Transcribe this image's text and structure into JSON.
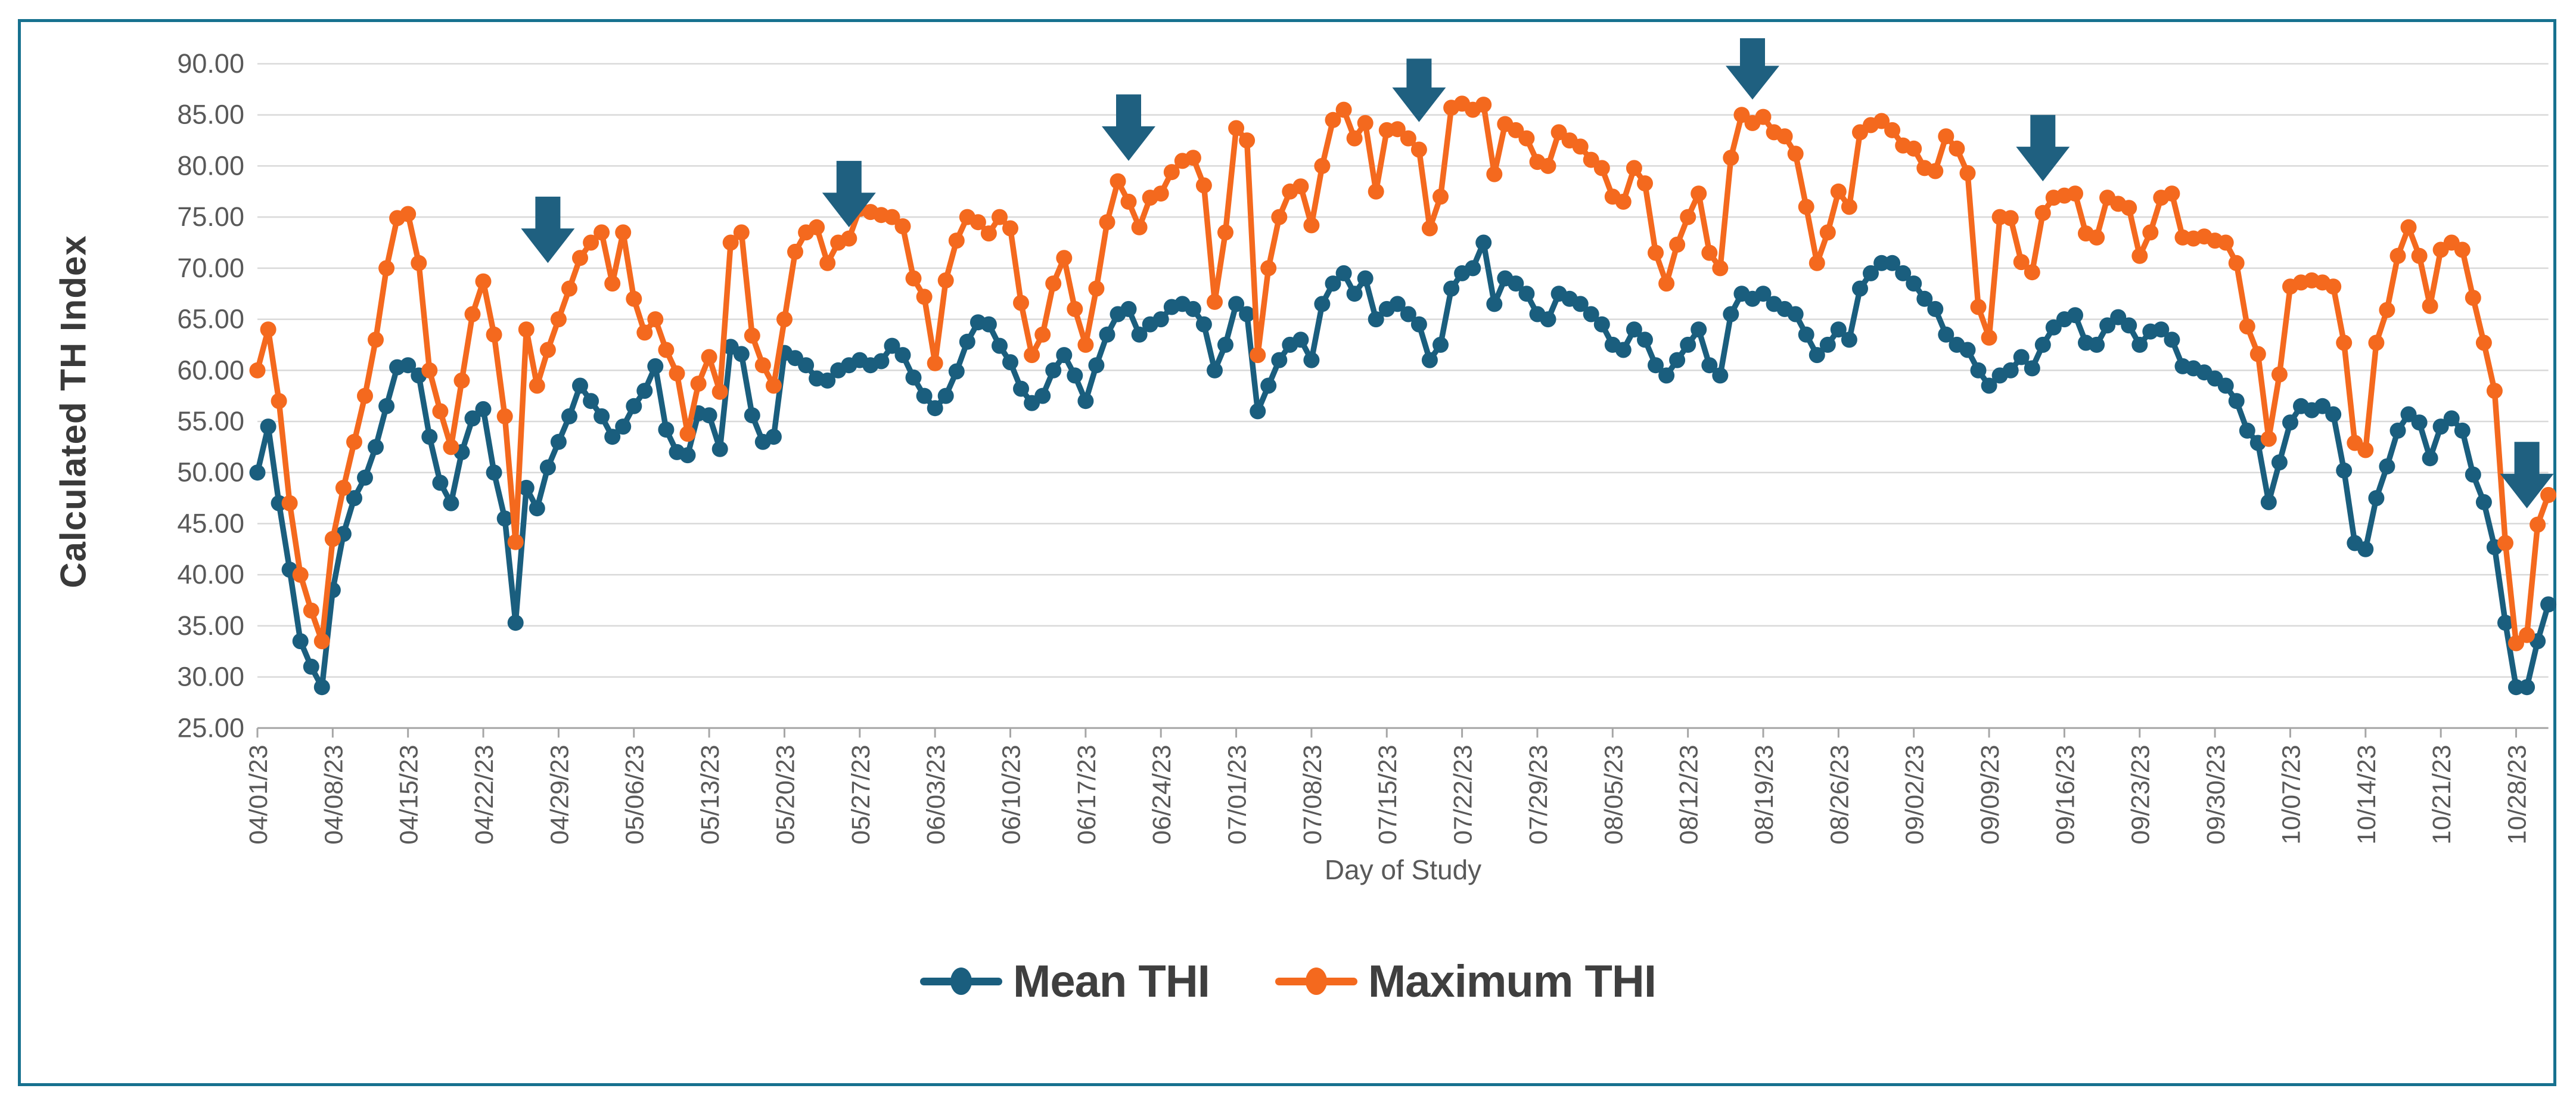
{
  "frame_color": "#17718F",
  "colors": {
    "mean_series": "#1A5E7E",
    "max_series": "#F4691E",
    "arrow": "#1F6080",
    "gridline": "#D9D9D9",
    "axis_line": "#A6A6A6",
    "tick_label": "#595959",
    "axis_title": "#3A3A3A",
    "legend_text": "#3F3F3F"
  },
  "chart_data": {
    "type": "line",
    "title": "",
    "xlabel": "Day of Study",
    "ylabel": "Calculated TH Index",
    "ylim": [
      25,
      90
    ],
    "y_tick_step": 5,
    "grid": "horizontal",
    "legend_position": "bottom",
    "y_tick_labels": [
      "90.00",
      "85.00",
      "80.00",
      "75.00",
      "70.00",
      "65.00",
      "60.00",
      "55.00",
      "50.00",
      "45.00",
      "40.00",
      "35.00",
      "30.00",
      "25.00"
    ],
    "x_tick_labels": [
      "04/01/23",
      "04/08/23",
      "04/15/23",
      "04/22/23",
      "04/29/23",
      "05/06/23",
      "05/13/23",
      "05/20/23",
      "05/27/23",
      "06/03/23",
      "06/10/23",
      "06/17/23",
      "06/24/23",
      "07/01/23",
      "07/08/23",
      "07/15/23",
      "07/22/23",
      "07/29/23",
      "08/05/23",
      "08/12/23",
      "08/19/23",
      "08/26/23",
      "09/02/23",
      "09/09/23",
      "09/16/23",
      "09/23/23",
      "09/30/23",
      "10/07/23",
      "10/14/23",
      "10/21/23",
      "10/28/23"
    ],
    "x_start_date": "04/01/23",
    "x_end_date": "10/31/23",
    "days": 214,
    "series": [
      {
        "name": "Mean THI",
        "color": "#1A5E7E",
        "values": [
          50,
          54.5,
          47,
          40.5,
          33.5,
          31,
          29,
          38.5,
          44,
          47.5,
          49.5,
          52.5,
          56.5,
          60.3,
          60.5,
          59.5,
          53.5,
          49,
          47,
          52,
          55.3,
          56.2,
          50,
          45.5,
          35.3,
          48.5,
          46.5,
          50.5,
          53,
          55.5,
          58.5,
          57,
          55.5,
          53.5,
          54.5,
          56.5,
          58,
          60.4,
          54.2,
          52,
          51.7,
          55.8,
          55.6,
          52.3,
          62.3,
          61.6,
          55.6,
          53,
          53.5,
          61.7,
          61.2,
          60.5,
          59.2,
          59,
          60,
          60.5,
          61,
          60.5,
          60.9,
          62.4,
          61.5,
          59.3,
          57.5,
          56.3,
          57.5,
          59.9,
          62.8,
          64.7,
          64.5,
          62.4,
          60.8,
          58.2,
          56.8,
          57.5,
          60,
          61.5,
          59.5,
          57,
          60.5,
          63.5,
          65.5,
          66,
          63.5,
          64.5,
          65,
          66.2,
          66.5,
          66,
          64.5,
          60,
          62.5,
          66.5,
          65.5,
          56,
          58.5,
          61,
          62.5,
          63,
          61,
          66.5,
          68.5,
          69.5,
          67.5,
          69,
          65,
          66,
          66.5,
          65.5,
          64.5,
          61,
          62.5,
          68,
          69.5,
          70,
          72.5,
          66.5,
          69,
          68.5,
          67.5,
          65.5,
          65,
          67.5,
          67,
          66.5,
          65.5,
          64.5,
          62.5,
          62,
          64,
          63,
          60.5,
          59.5,
          61,
          62.5,
          64,
          60.5,
          59.5,
          65.5,
          67.5,
          67,
          67.5,
          66.5,
          66,
          65.5,
          63.5,
          61.5,
          62.5,
          64,
          63,
          68,
          69.5,
          70.5,
          70.5,
          69.5,
          68.5,
          67,
          66,
          63.5,
          62.5,
          62,
          60,
          58.5,
          59.5,
          60,
          61.3,
          60.2,
          62.5,
          64.2,
          65,
          65.4,
          62.7,
          62.5,
          64.4,
          65.2,
          64.4,
          62.5,
          63.8,
          64,
          63,
          60.4,
          60.2,
          59.8,
          59.2,
          58.5,
          57,
          54.1,
          52.9,
          47.1,
          51,
          54.9,
          56.5,
          56.1,
          56.5,
          55.7,
          50.2,
          43.1,
          42.5,
          47.5,
          50.6,
          54.1,
          55.7,
          54.9,
          51.4,
          54.5,
          55.3,
          54.1,
          49.8,
          47.1,
          42.7,
          35.3,
          29,
          29,
          33.5,
          37.1
        ]
      },
      {
        "name": "Maximum THI",
        "color": "#F4691E",
        "values": [
          60,
          64,
          57,
          47,
          40,
          36.5,
          33.5,
          43.5,
          48.5,
          53,
          57.5,
          63,
          70,
          74.9,
          75.3,
          70.5,
          60,
          56,
          52.5,
          59,
          65.5,
          68.7,
          63.5,
          55.5,
          43.2,
          64,
          58.5,
          62,
          65,
          68,
          71,
          72.5,
          73.5,
          68.5,
          73.5,
          67,
          63.7,
          65,
          62,
          59.7,
          53.8,
          58.7,
          61.3,
          57.9,
          72.5,
          73.5,
          63.4,
          60.5,
          58.5,
          65,
          71.6,
          73.5,
          74,
          70.5,
          72.5,
          72.9,
          75.8,
          75.5,
          75.2,
          75,
          74.1,
          69,
          67.2,
          60.7,
          68.8,
          72.7,
          75,
          74.5,
          73.4,
          75,
          73.9,
          66.6,
          61.5,
          63.5,
          68.5,
          71,
          66,
          62.5,
          68,
          74.5,
          78.5,
          76.5,
          74,
          76.9,
          77.3,
          79.4,
          80.5,
          80.8,
          78.1,
          66.7,
          73.5,
          83.7,
          82.5,
          61.5,
          70,
          75,
          77.5,
          78,
          74.2,
          80,
          84.5,
          85.5,
          82.7,
          84.2,
          77.5,
          83.5,
          83.6,
          82.7,
          81.6,
          73.9,
          77,
          85.7,
          86.1,
          85.5,
          86,
          79.2,
          84.1,
          83.5,
          82.7,
          80.4,
          80,
          83.3,
          82.5,
          81.9,
          80.6,
          79.8,
          77,
          76.5,
          79.8,
          78.3,
          71.5,
          68.5,
          72.3,
          75,
          77.3,
          71.5,
          70,
          80.8,
          85,
          84.2,
          84.8,
          83.3,
          82.9,
          81.2,
          76,
          70.5,
          73.5,
          77.5,
          76,
          83.3,
          84,
          84.4,
          83.5,
          82,
          81.7,
          79.8,
          79.5,
          82.9,
          81.7,
          79.3,
          66.2,
          63.2,
          75,
          74.9,
          70.6,
          69.6,
          75.4,
          76.9,
          77.1,
          77.3,
          73.4,
          73,
          76.9,
          76.3,
          75.9,
          71.2,
          73.5,
          76.9,
          77.3,
          73,
          72.9,
          73.1,
          72.7,
          72.5,
          70.5,
          64.3,
          61.6,
          53.3,
          59.6,
          68.2,
          68.6,
          68.8,
          68.6,
          68.2,
          62.7,
          52.9,
          52.2,
          62.7,
          65.9,
          71.2,
          74,
          71.2,
          66.3,
          71.8,
          72.5,
          71.8,
          67.1,
          62.7,
          58,
          43.1,
          33.3,
          34.1,
          44.9,
          47.8
        ]
      }
    ],
    "annotations": {
      "arrows": [
        {
          "date": "04/28/23",
          "day_index": 27,
          "tip_value": 70.5,
          "top_value": 77
        },
        {
          "date": "05/26/23",
          "day_index": 55,
          "tip_value": 74,
          "top_value": 80.5
        },
        {
          "date": "06/21/23",
          "day_index": 81,
          "tip_value": 80.5,
          "top_value": 87
        },
        {
          "date": "07/18/23",
          "day_index": 108,
          "tip_value": 84.3,
          "top_value": 90.5
        },
        {
          "date": "08/18/23",
          "day_index": 139,
          "tip_value": 86.5,
          "top_value": 92.5
        },
        {
          "date": "09/14/23",
          "day_index": 166,
          "tip_value": 78.5,
          "top_value": 85
        },
        {
          "date": "10/29/23",
          "day_index": 211,
          "tip_value": 46.5,
          "top_value": 53
        }
      ]
    }
  },
  "legend": {
    "items": [
      {
        "label": "Mean THI",
        "color": "#1A5E7E"
      },
      {
        "label": "Maximum THI",
        "color": "#F4691E"
      }
    ]
  },
  "axis": {
    "y_title": "Calculated TH Index",
    "x_title": "Day of Study"
  }
}
